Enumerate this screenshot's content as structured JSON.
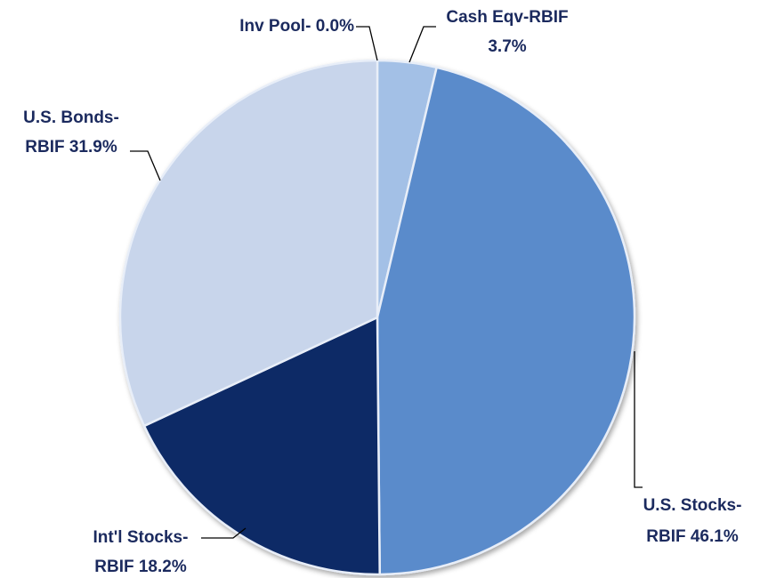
{
  "chart_data": {
    "type": "pie",
    "values": [
      0.0,
      3.7,
      46.1,
      18.2,
      31.9
    ],
    "value_labels": [
      [
        "Inv Pool- 0.0%"
      ],
      [
        "Cash Eqv-RBIF",
        "3.7%"
      ],
      [
        "U.S. Stocks-",
        "RBIF 46.1%"
      ],
      [
        "Int'l Stocks-",
        "RBIF 18.2%"
      ],
      [
        "U.S. Bonds-",
        "RBIF 31.9%"
      ]
    ],
    "colors": [
      "#7f9fd0",
      "#a3c0e6",
      "#5a8bcb",
      "#0f2a66",
      "#c8d5eb"
    ]
  }
}
